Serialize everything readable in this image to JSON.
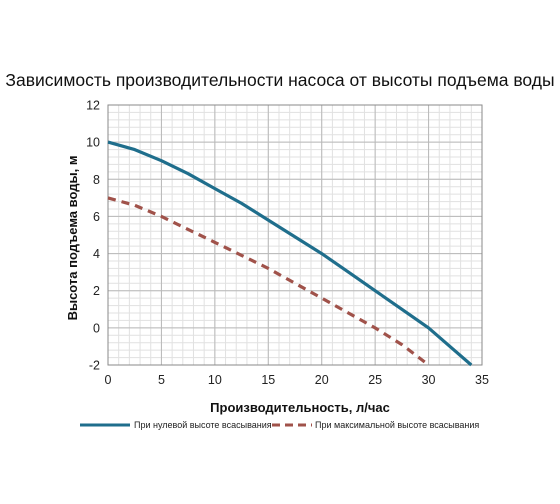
{
  "chart_data": {
    "type": "line",
    "title": "Зависимость производительности насоса от высоты подъема воды",
    "xlabel": "Производительность, л/час",
    "ylabel": "Высота подъема воды, м",
    "xlim": [
      0,
      35
    ],
    "ylim": [
      -2,
      12
    ],
    "xticks": [
      "0",
      "5",
      "10",
      "15",
      "20",
      "25",
      "30",
      "35"
    ],
    "yticks": [
      "-2",
      "0",
      "2",
      "4",
      "6",
      "8",
      "10",
      "12"
    ],
    "x_major_step": 5,
    "y_major_step": 2,
    "minor_divisions": 5,
    "grid": true,
    "legend_position": "bottom",
    "series": [
      {
        "name": "При нулевой высоте всасывания",
        "color": "#1f6e8c",
        "style": "solid",
        "points": [
          [
            0,
            10
          ],
          [
            2.5,
            9.6
          ],
          [
            5,
            9.0
          ],
          [
            7.5,
            8.3
          ],
          [
            10,
            7.5
          ],
          [
            12.5,
            6.7
          ],
          [
            15,
            5.8
          ],
          [
            17.5,
            4.9
          ],
          [
            20,
            4.0
          ],
          [
            22.5,
            3.0
          ],
          [
            25,
            2.0
          ],
          [
            27.5,
            1.0
          ],
          [
            30,
            0.0
          ],
          [
            32,
            -1.0
          ],
          [
            34,
            -2.0
          ]
        ]
      },
      {
        "name": "При максимальной высоте всасывания",
        "color": "#a0524a",
        "style": "dashed",
        "points": [
          [
            0,
            7
          ],
          [
            2.5,
            6.6
          ],
          [
            5,
            6.0
          ],
          [
            7.5,
            5.3
          ],
          [
            10,
            4.6
          ],
          [
            12.5,
            3.9
          ],
          [
            15,
            3.2
          ],
          [
            17.5,
            2.4
          ],
          [
            20,
            1.6
          ],
          [
            22.5,
            0.8
          ],
          [
            25,
            0.0
          ],
          [
            27.5,
            -0.9
          ],
          [
            30,
            -2.0
          ]
        ]
      }
    ]
  }
}
